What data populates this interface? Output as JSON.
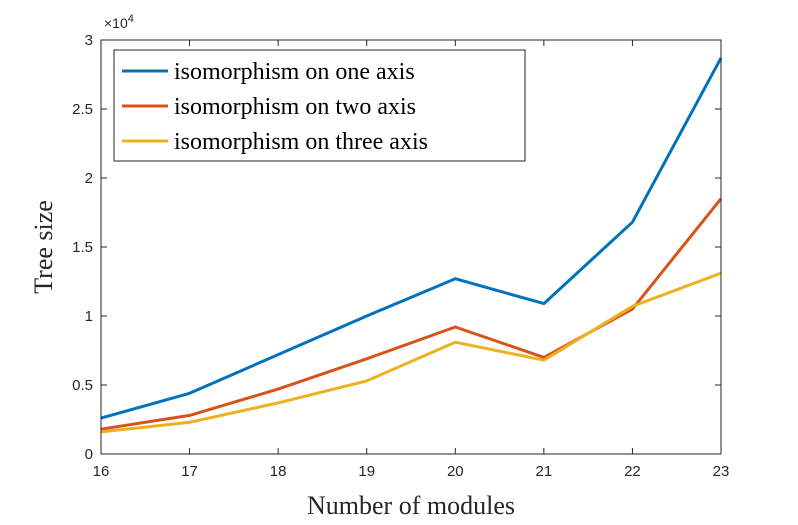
{
  "chart_data": {
    "type": "line",
    "title": "",
    "xlabel": "Number of modules",
    "ylabel": "Tree size",
    "y_multiplier": {
      "base": "×10",
      "exponent": "4"
    },
    "x": [
      16,
      17,
      18,
      19,
      20,
      21,
      22,
      23
    ],
    "xlim": [
      16,
      23
    ],
    "ylim": [
      0,
      3
    ],
    "xticks": [
      16,
      17,
      18,
      19,
      20,
      21,
      22,
      23
    ],
    "yticks": [
      0,
      0.5,
      1,
      1.5,
      2,
      2.5,
      3
    ],
    "ytick_labels": [
      "0",
      "0.5",
      "1",
      "1.5",
      "2",
      "2.5",
      "3"
    ],
    "grid": false,
    "legend_position": "top-left",
    "series": [
      {
        "name": "isomorphism on one axis",
        "color": "#0072BD",
        "values": [
          0.26,
          0.44,
          0.72,
          1.0,
          1.27,
          1.09,
          1.68,
          2.87
        ]
      },
      {
        "name": "isomorphism on two axis",
        "color": "#D95319",
        "values": [
          0.18,
          0.28,
          0.47,
          0.69,
          0.92,
          0.7,
          1.05,
          1.85
        ]
      },
      {
        "name": "isomorphism on three axis",
        "color": "#EDB120",
        "values": [
          0.16,
          0.23,
          0.37,
          0.53,
          0.81,
          0.68,
          1.07,
          1.31
        ]
      }
    ]
  }
}
